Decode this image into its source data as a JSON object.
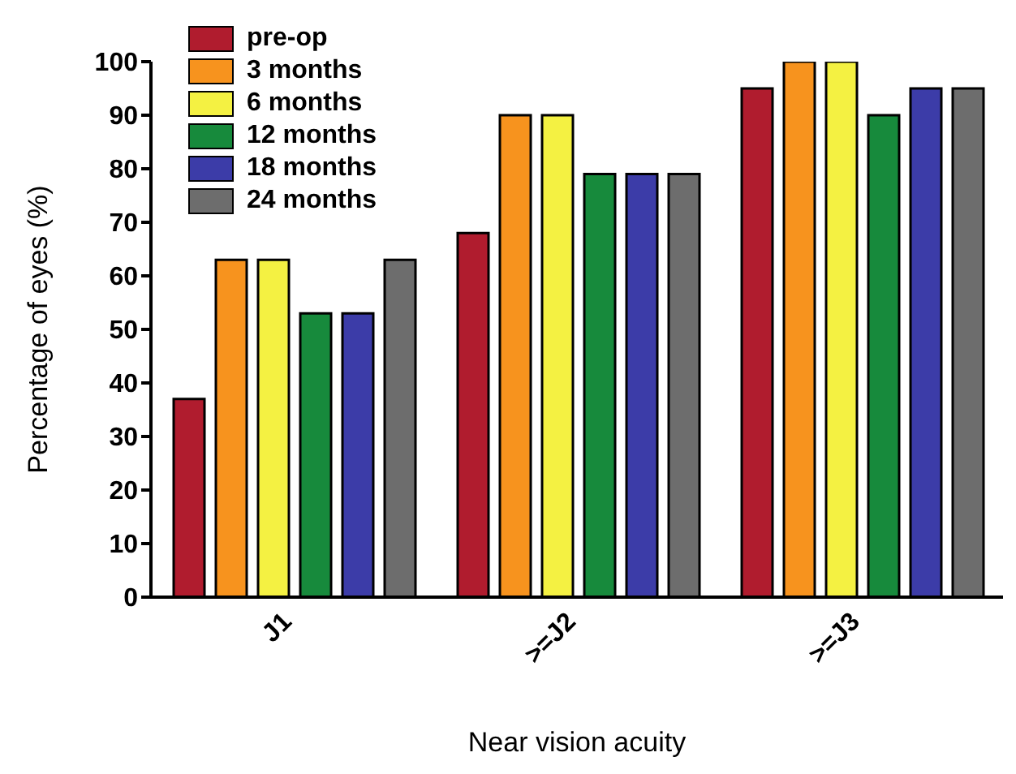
{
  "chart_data": {
    "type": "bar",
    "xlabel": "Near vision acuity",
    "ylabel": "Percentage of eyes (%)",
    "categories": [
      "J1",
      ">=J2",
      ">=J3"
    ],
    "series": [
      {
        "name": "pre-op",
        "color": "#b01c2e",
        "values": [
          37,
          68,
          95
        ]
      },
      {
        "name": "3 months",
        "color": "#f7931e",
        "values": [
          63,
          90,
          100
        ]
      },
      {
        "name": "6 months",
        "color": "#f4f142",
        "values": [
          63,
          90,
          100
        ]
      },
      {
        "name": "12 months",
        "color": "#178a3c",
        "values": [
          53,
          79,
          90
        ]
      },
      {
        "name": "18 months",
        "color": "#3c3ca8",
        "values": [
          53,
          79,
          95
        ]
      },
      {
        "name": "24 months",
        "color": "#6d6d6d",
        "values": [
          63,
          79,
          95
        ]
      }
    ],
    "ylim": [
      0,
      100
    ],
    "yticks": [
      0,
      10,
      20,
      30,
      40,
      50,
      60,
      70,
      80,
      90,
      100
    ],
    "grid": false,
    "legend": "top left"
  }
}
